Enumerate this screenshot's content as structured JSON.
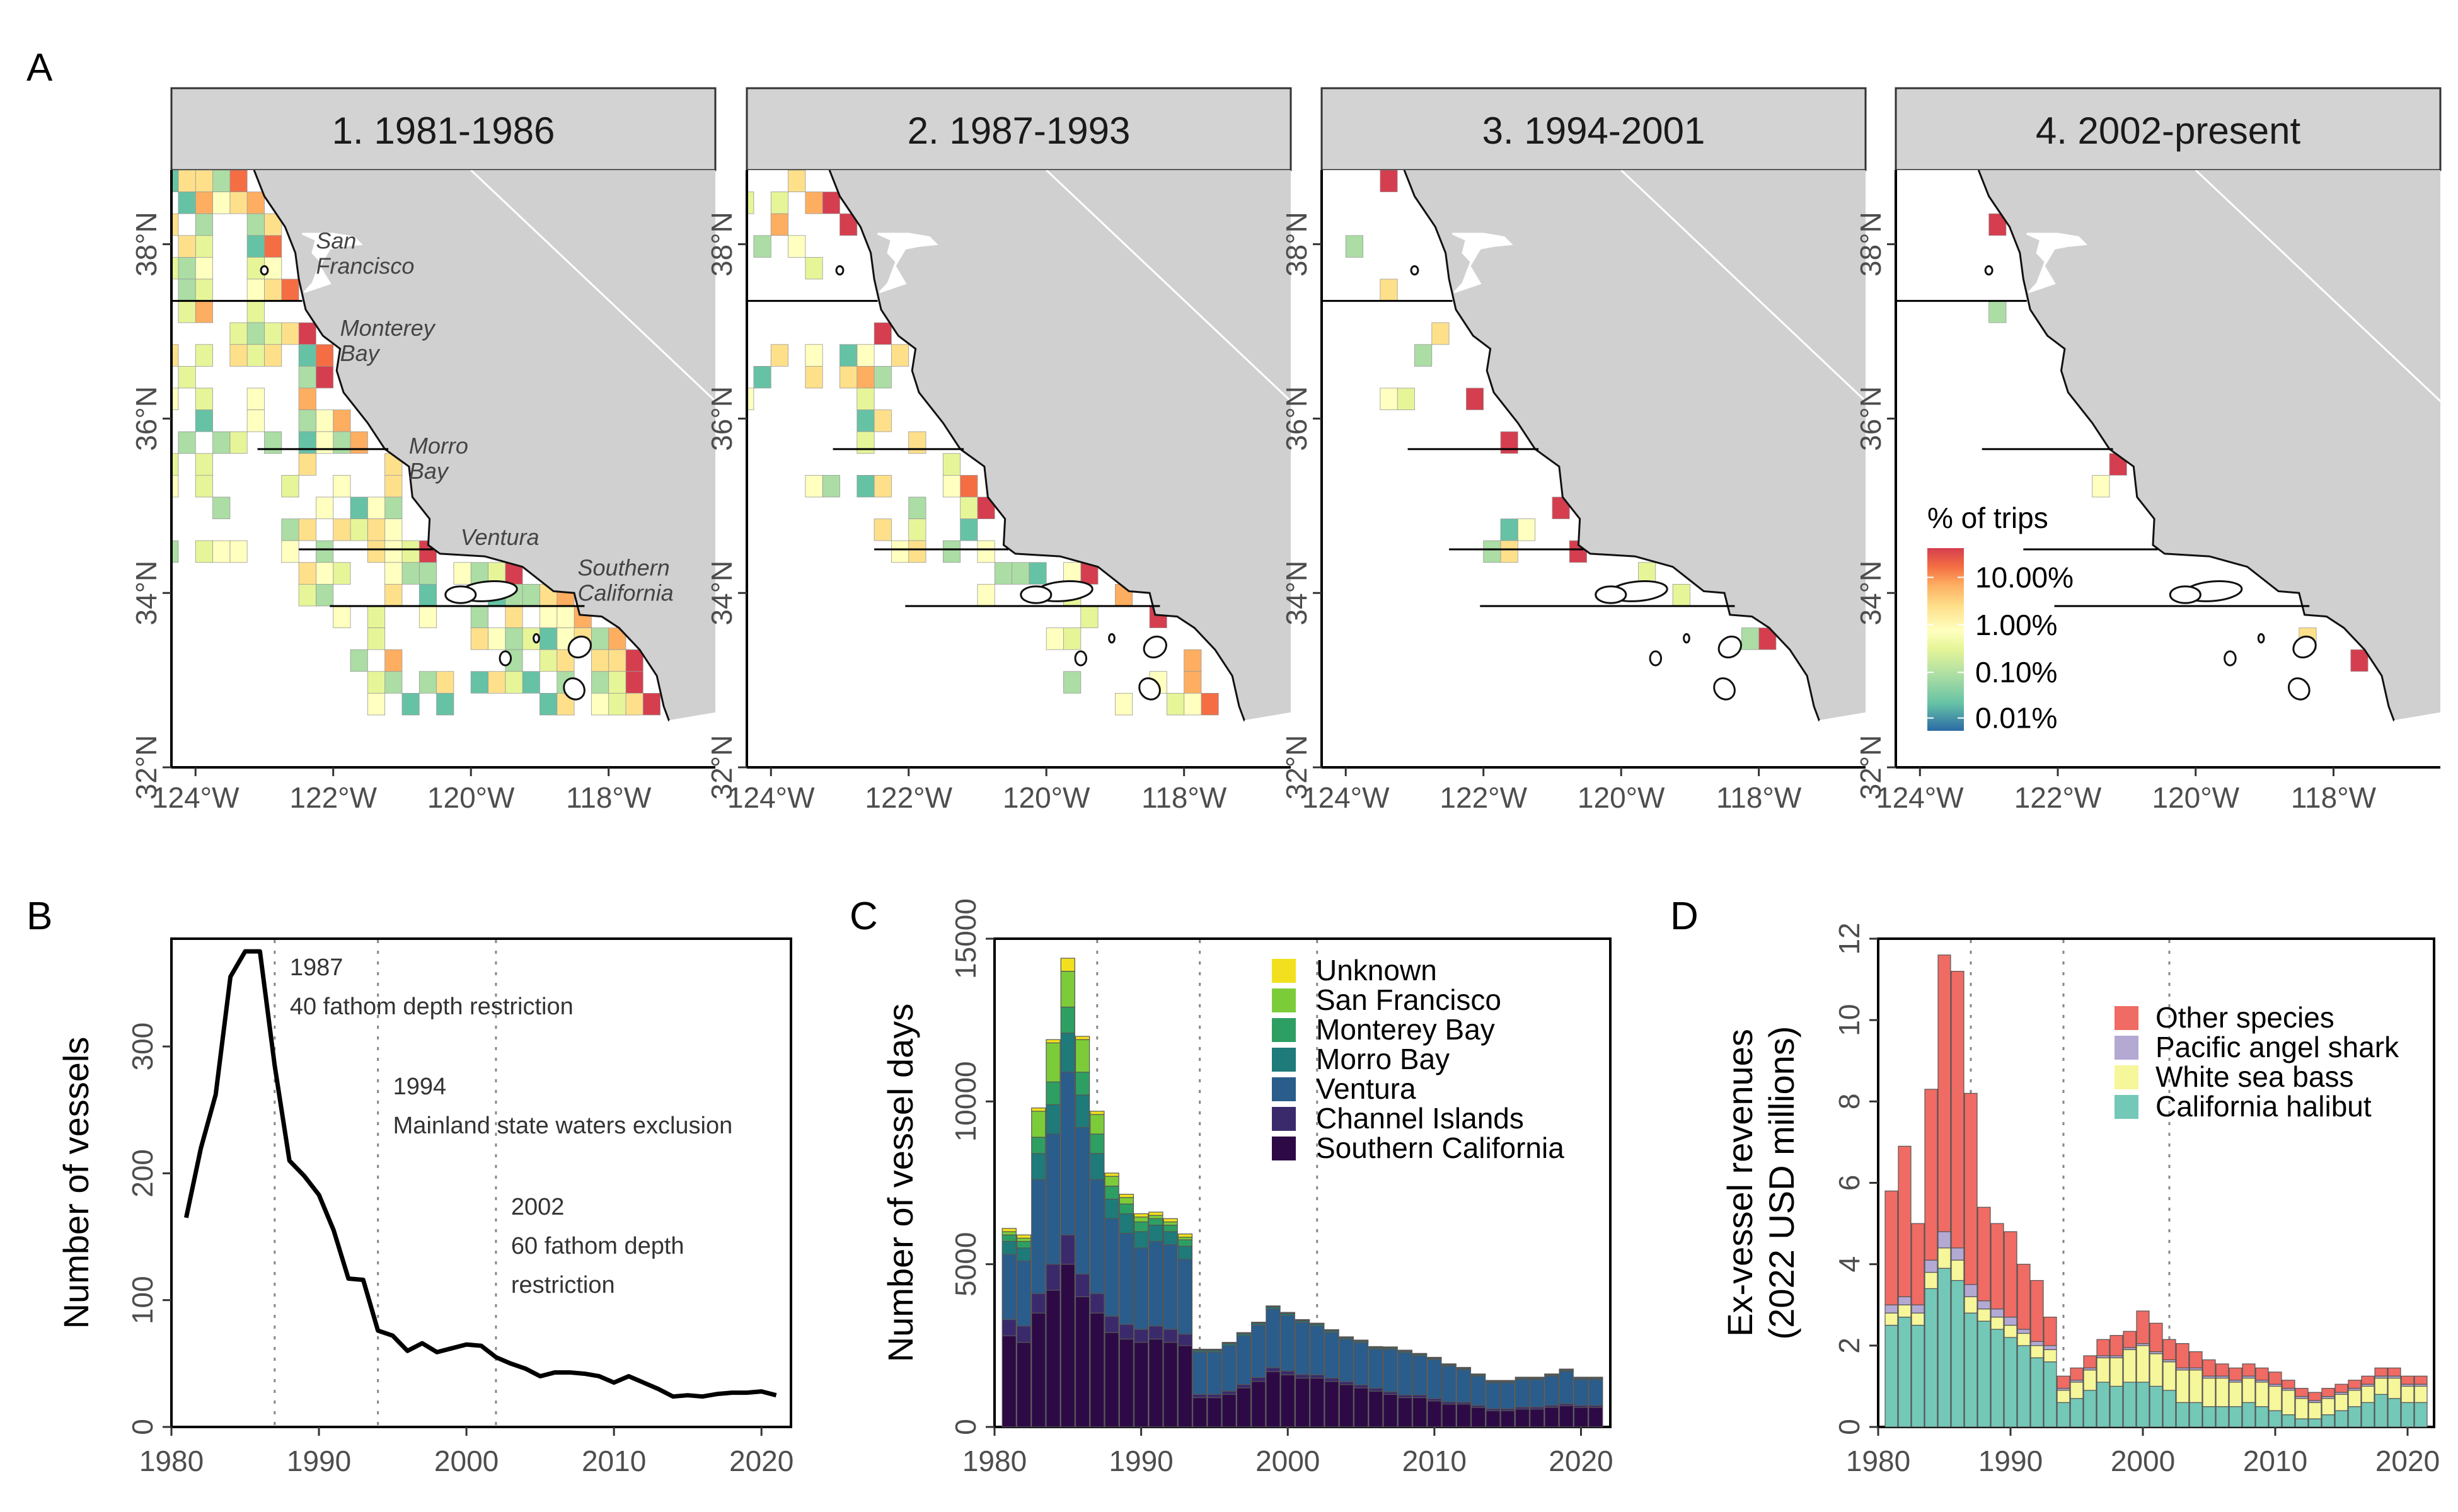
{
  "panel_labels": {
    "A": "A",
    "B": "B",
    "C": "C",
    "D": "D"
  },
  "colors": {
    "land": "#d0d0d0",
    "strip": "#d3d3d3",
    "grid_low": "#2c6fa5",
    "grid_high": "#d73027"
  },
  "chart_data": [
    {
      "type": "heatmap",
      "panel": "A",
      "facets": [
        "1. 1981-1986",
        "2. 1987-1993",
        "3. 1994-2001",
        "4. 2002-present"
      ],
      "x_ticks": [
        "124°W",
        "122°W",
        "120°W",
        "118°W"
      ],
      "y_ticks": [
        "32°N",
        "34°N",
        "36°N",
        "38°N"
      ],
      "region_labels": [
        {
          "lines": [
            "San",
            "Francisco"
          ]
        },
        {
          "lines": [
            "Monterey",
            "Bay"
          ]
        },
        {
          "lines": [
            "Morro",
            "Bay"
          ]
        },
        {
          "lines": [
            "Ventura"
          ]
        },
        {
          "lines": [
            "Southern",
            "California"
          ]
        }
      ],
      "legend": {
        "title": "% of trips",
        "labels": [
          "10.00%",
          "1.00%",
          "0.10%",
          "0.01%"
        ],
        "scale": "log",
        "palette": [
          "#2b6aa6",
          "#66c2a5",
          "#abdda4",
          "#e6f598",
          "#ffffbf",
          "#fee08b",
          "#fdae61",
          "#f46d43",
          "#d53e4f"
        ]
      }
    },
    {
      "type": "line",
      "panel": "B",
      "ylabel": "Number of vessels",
      "xlim": [
        1980,
        2022
      ],
      "ylim": [
        0,
        385
      ],
      "x_ticks": [
        1980,
        1990,
        2000,
        2010,
        2020
      ],
      "y_ticks": [
        0,
        100,
        200,
        300
      ],
      "x": [
        1981,
        1982,
        1983,
        1984,
        1985,
        1986,
        1987,
        1988,
        1989,
        1990,
        1991,
        1992,
        1993,
        1994,
        1995,
        1996,
        1997,
        1998,
        1999,
        2000,
        2001,
        2002,
        2003,
        2004,
        2005,
        2006,
        2007,
        2008,
        2009,
        2010,
        2011,
        2012,
        2013,
        2014,
        2015,
        2016,
        2017,
        2018,
        2019,
        2020,
        2021
      ],
      "y": [
        165,
        220,
        262,
        355,
        375,
        375,
        285,
        210,
        198,
        183,
        155,
        117,
        116,
        76,
        72,
        60,
        66,
        59,
        62,
        65,
        64,
        55,
        50,
        46,
        40,
        43,
        43,
        42,
        40,
        35,
        40,
        35,
        30,
        24,
        25,
        24,
        26,
        27,
        27,
        28,
        25
      ],
      "vlines": [
        1987,
        1994,
        2002
      ],
      "annotations": [
        {
          "lines": [
            "1987",
            "40 fathom depth restriction"
          ]
        },
        {
          "lines": [
            "1994",
            "Mainland state waters exclusion"
          ]
        },
        {
          "lines": [
            "2002",
            "60 fathom depth",
            "restriction"
          ]
        }
      ]
    },
    {
      "type": "bar",
      "stacked": true,
      "panel": "C",
      "ylabel": "Number of vessel days",
      "xlim": [
        1980,
        2022
      ],
      "ylim": [
        0,
        15000
      ],
      "x_ticks": [
        1980,
        1990,
        2000,
        2010,
        2020
      ],
      "y_ticks": [
        0,
        5000,
        10000,
        15000
      ],
      "vlines": [
        1987,
        1994,
        2002
      ],
      "legend_position": "top-right",
      "x": [
        1981,
        1982,
        1983,
        1984,
        1985,
        1986,
        1987,
        1988,
        1989,
        1990,
        1991,
        1992,
        1993,
        1994,
        1995,
        1996,
        1997,
        1998,
        1999,
        2000,
        2001,
        2002,
        2003,
        2004,
        2005,
        2006,
        2007,
        2008,
        2009,
        2010,
        2011,
        2012,
        2013,
        2014,
        2015,
        2016,
        2017,
        2018,
        2019,
        2020,
        2021
      ],
      "series": [
        {
          "name": "Southern California",
          "color": "#2d0a45",
          "values": [
            2800,
            2600,
            3500,
            4200,
            5000,
            4000,
            3500,
            2900,
            2700,
            2600,
            2700,
            2600,
            2500,
            900,
            900,
            1000,
            1200,
            1400,
            1700,
            1600,
            1500,
            1500,
            1400,
            1300,
            1200,
            1100,
            1000,
            900,
            900,
            800,
            700,
            700,
            600,
            500,
            500,
            550,
            550,
            600,
            650,
            600,
            600
          ]
        },
        {
          "name": "Channel Islands",
          "color": "#3b2a6b",
          "values": [
            500,
            500,
            600,
            800,
            900,
            700,
            600,
            500,
            450,
            400,
            400,
            400,
            350,
            100,
            100,
            100,
            100,
            120,
            120,
            120,
            110,
            100,
            100,
            90,
            90,
            90,
            80,
            80,
            80,
            70,
            70,
            60,
            60,
            60,
            60,
            60,
            60,
            60,
            60,
            60,
            60
          ]
        },
        {
          "name": "Ventura",
          "color": "#2a5d8b",
          "values": [
            2000,
            2000,
            3500,
            4000,
            5000,
            4500,
            3500,
            3000,
            2800,
            2500,
            2600,
            2600,
            2300,
            1300,
            1300,
            1400,
            1500,
            1600,
            1800,
            1700,
            1600,
            1500,
            1400,
            1300,
            1300,
            1200,
            1300,
            1300,
            1200,
            1200,
            1100,
            1000,
            900,
            800,
            800,
            850,
            850,
            900,
            1000,
            800,
            800
          ]
        },
        {
          "name": "Morro Bay",
          "color": "#1f7a7a",
          "values": [
            400,
            400,
            800,
            900,
            1200,
            1000,
            800,
            600,
            600,
            500,
            500,
            400,
            400,
            50,
            50,
            60,
            60,
            60,
            60,
            60,
            50,
            50,
            50,
            40,
            40,
            40,
            40,
            40,
            40,
            30,
            30,
            30,
            30,
            30,
            30,
            30,
            30,
            30,
            30,
            30,
            30
          ]
        },
        {
          "name": "Monterey Bay",
          "color": "#2e9f62",
          "values": [
            200,
            200,
            500,
            700,
            800,
            700,
            600,
            400,
            300,
            300,
            200,
            200,
            200,
            20,
            20,
            20,
            20,
            20,
            20,
            20,
            20,
            20,
            20,
            20,
            20,
            20,
            20,
            20,
            20,
            20,
            20,
            20,
            20,
            20,
            20,
            20,
            20,
            20,
            20,
            20,
            20
          ]
        },
        {
          "name": "San Francisco",
          "color": "#7ccc3a",
          "values": [
            100,
            100,
            800,
            1200,
            1100,
            1000,
            600,
            300,
            200,
            150,
            100,
            100,
            80,
            10,
            10,
            10,
            10,
            10,
            10,
            10,
            10,
            10,
            10,
            10,
            10,
            10,
            10,
            10,
            10,
            10,
            10,
            10,
            10,
            10,
            10,
            10,
            10,
            10,
            10,
            10,
            10
          ]
        },
        {
          "name": "Unknown",
          "color": "#f2e01e",
          "values": [
            100,
            100,
            100,
            100,
            400,
            100,
            100,
            100,
            100,
            100,
            100,
            100,
            100,
            10,
            10,
            10,
            10,
            10,
            10,
            10,
            10,
            10,
            10,
            10,
            10,
            10,
            10,
            10,
            10,
            10,
            10,
            10,
            10,
            10,
            10,
            10,
            10,
            10,
            10,
            10,
            10
          ]
        }
      ]
    },
    {
      "type": "bar",
      "stacked": true,
      "panel": "D",
      "ylabel": [
        "Ex-vessel revenues",
        "(2022 USD millions)"
      ],
      "xlim": [
        1980,
        2022
      ],
      "ylim": [
        0,
        12
      ],
      "x_ticks": [
        1980,
        1990,
        2000,
        2010,
        2020
      ],
      "y_ticks": [
        0,
        2,
        4,
        6,
        8,
        10,
        12
      ],
      "vlines": [
        1987,
        1994,
        2002
      ],
      "legend_position": "top-right",
      "x": [
        1981,
        1982,
        1983,
        1984,
        1985,
        1986,
        1987,
        1988,
        1989,
        1990,
        1991,
        1992,
        1993,
        1994,
        1995,
        1996,
        1997,
        1998,
        1999,
        2000,
        2001,
        2002,
        2003,
        2004,
        2005,
        2006,
        2007,
        2008,
        2009,
        2010,
        2011,
        2012,
        2013,
        2014,
        2015,
        2016,
        2017,
        2018,
        2019,
        2020,
        2021
      ],
      "series": [
        {
          "name": "California halibut",
          "color": "#74c8b8",
          "values": [
            2.5,
            2.7,
            2.5,
            3.4,
            3.9,
            3.6,
            2.8,
            2.6,
            2.4,
            2.2,
            2.0,
            1.7,
            1.6,
            0.6,
            0.7,
            0.9,
            1.1,
            1.0,
            1.1,
            1.1,
            1.0,
            0.9,
            0.6,
            0.6,
            0.5,
            0.5,
            0.5,
            0.6,
            0.5,
            0.4,
            0.3,
            0.2,
            0.2,
            0.3,
            0.4,
            0.5,
            0.6,
            0.8,
            0.7,
            0.6,
            0.6
          ]
        },
        {
          "name": "White sea bass",
          "color": "#f6f69a",
          "values": [
            0.3,
            0.3,
            0.3,
            0.4,
            0.5,
            0.5,
            0.4,
            0.3,
            0.3,
            0.3,
            0.3,
            0.3,
            0.3,
            0.3,
            0.4,
            0.5,
            0.6,
            0.7,
            0.8,
            0.9,
            0.8,
            0.7,
            0.8,
            0.8,
            0.7,
            0.7,
            0.6,
            0.6,
            0.6,
            0.6,
            0.6,
            0.5,
            0.4,
            0.4,
            0.4,
            0.4,
            0.4,
            0.4,
            0.5,
            0.4,
            0.4
          ]
        },
        {
          "name": "Pacific angel shark",
          "color": "#b3a9d3",
          "values": [
            0.2,
            0.2,
            0.2,
            0.3,
            0.4,
            0.3,
            0.3,
            0.2,
            0.2,
            0.2,
            0.1,
            0.1,
            0.1,
            0.05,
            0.05,
            0.05,
            0.05,
            0.05,
            0.05,
            0.05,
            0.05,
            0.05,
            0.05,
            0.05,
            0.05,
            0.05,
            0.05,
            0.05,
            0.05,
            0.05,
            0.05,
            0.05,
            0.05,
            0.05,
            0.05,
            0.05,
            0.05,
            0.05,
            0.05,
            0.05,
            0.05
          ]
        },
        {
          "name": "Other species",
          "color": "#ef6b63",
          "values": [
            2.8,
            3.7,
            2.0,
            4.2,
            6.8,
            6.8,
            4.7,
            2.3,
            2.1,
            2.1,
            1.6,
            1.5,
            0.7,
            0.3,
            0.3,
            0.3,
            0.4,
            0.5,
            0.4,
            0.8,
            0.7,
            0.5,
            0.6,
            0.4,
            0.4,
            0.3,
            0.3,
            0.3,
            0.3,
            0.3,
            0.2,
            0.2,
            0.2,
            0.2,
            0.2,
            0.2,
            0.2,
            0.2,
            0.2,
            0.2,
            0.2
          ]
        }
      ]
    }
  ]
}
